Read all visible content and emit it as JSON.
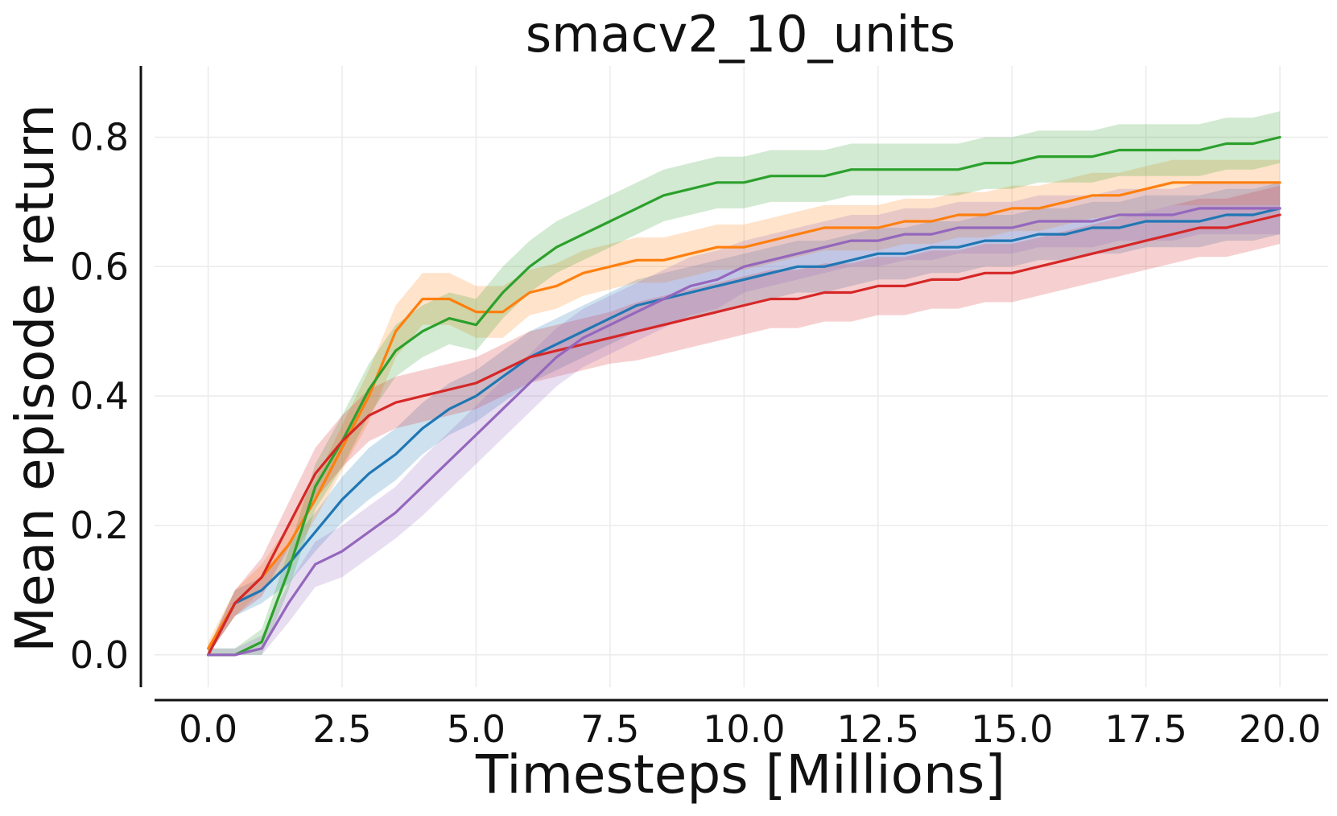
{
  "chart_data": {
    "type": "line",
    "title": "smacv2_10_units",
    "xlabel": "Timesteps [Millions]",
    "ylabel": "Mean episode return",
    "xlim": [
      -1.0,
      20.9
    ],
    "ylim": [
      -0.05,
      0.91
    ],
    "xticks": [
      0.0,
      2.5,
      5.0,
      7.5,
      10.0,
      12.5,
      15.0,
      17.5,
      20.0
    ],
    "xtick_labels": [
      "0.0",
      "2.5",
      "5.0",
      "7.5",
      "10.0",
      "12.5",
      "15.0",
      "17.5",
      "20.0"
    ],
    "yticks": [
      0.0,
      0.2,
      0.4,
      0.6,
      0.8
    ],
    "ytick_labels": [
      "0.0",
      "0.2",
      "0.4",
      "0.6",
      "0.8"
    ],
    "grid": true,
    "legend": "none",
    "x": [
      0.0,
      0.5,
      1.0,
      1.5,
      2.0,
      2.5,
      3.0,
      3.5,
      4.0,
      4.5,
      5.0,
      5.5,
      6.0,
      6.5,
      7.0,
      7.5,
      8.0,
      8.5,
      9.0,
      9.5,
      10.0,
      10.5,
      11.0,
      11.5,
      12.0,
      12.5,
      13.0,
      13.5,
      14.0,
      14.5,
      15.0,
      15.5,
      16.0,
      16.5,
      17.0,
      17.5,
      18.0,
      18.5,
      19.0,
      19.5,
      20.0
    ],
    "series": [
      {
        "name": "blue",
        "color": "#1f77b4",
        "values": [
          0.0,
          0.08,
          0.1,
          0.14,
          0.19,
          0.24,
          0.28,
          0.31,
          0.35,
          0.38,
          0.4,
          0.43,
          0.46,
          0.48,
          0.5,
          0.52,
          0.54,
          0.55,
          0.56,
          0.57,
          0.58,
          0.59,
          0.6,
          0.6,
          0.61,
          0.62,
          0.62,
          0.63,
          0.63,
          0.64,
          0.64,
          0.65,
          0.65,
          0.66,
          0.66,
          0.67,
          0.67,
          0.67,
          0.68,
          0.68,
          0.69
        ],
        "band": [
          0.01,
          0.02,
          0.02,
          0.03,
          0.03,
          0.035,
          0.04,
          0.04,
          0.04,
          0.04,
          0.04,
          0.04,
          0.04,
          0.04,
          0.04,
          0.04,
          0.04,
          0.04,
          0.04,
          0.04,
          0.04,
          0.04,
          0.04,
          0.04,
          0.04,
          0.04,
          0.04,
          0.04,
          0.04,
          0.04,
          0.04,
          0.04,
          0.04,
          0.04,
          0.04,
          0.04,
          0.04,
          0.04,
          0.04,
          0.04,
          0.04
        ]
      },
      {
        "name": "orange",
        "color": "#ff7f0e",
        "values": [
          0.01,
          0.08,
          0.12,
          0.17,
          0.24,
          0.32,
          0.4,
          0.5,
          0.55,
          0.55,
          0.53,
          0.53,
          0.56,
          0.57,
          0.59,
          0.6,
          0.61,
          0.61,
          0.62,
          0.63,
          0.63,
          0.64,
          0.65,
          0.66,
          0.66,
          0.66,
          0.67,
          0.67,
          0.68,
          0.68,
          0.69,
          0.69,
          0.7,
          0.71,
          0.71,
          0.72,
          0.73,
          0.73,
          0.73,
          0.73,
          0.73
        ],
        "band": [
          0.01,
          0.02,
          0.02,
          0.03,
          0.03,
          0.035,
          0.04,
          0.04,
          0.04,
          0.04,
          0.04,
          0.04,
          0.035,
          0.035,
          0.035,
          0.035,
          0.035,
          0.035,
          0.035,
          0.035,
          0.035,
          0.035,
          0.035,
          0.035,
          0.035,
          0.035,
          0.035,
          0.035,
          0.035,
          0.035,
          0.035,
          0.035,
          0.035,
          0.035,
          0.035,
          0.035,
          0.035,
          0.035,
          0.035,
          0.035,
          0.035
        ]
      },
      {
        "name": "green",
        "color": "#2ca02c",
        "values": [
          0.0,
          0.0,
          0.02,
          0.13,
          0.26,
          0.33,
          0.41,
          0.47,
          0.5,
          0.52,
          0.51,
          0.56,
          0.6,
          0.63,
          0.65,
          0.67,
          0.69,
          0.71,
          0.72,
          0.73,
          0.73,
          0.74,
          0.74,
          0.74,
          0.75,
          0.75,
          0.75,
          0.75,
          0.75,
          0.76,
          0.76,
          0.77,
          0.77,
          0.77,
          0.78,
          0.78,
          0.78,
          0.78,
          0.79,
          0.79,
          0.8
        ],
        "band": [
          0.01,
          0.01,
          0.02,
          0.03,
          0.035,
          0.04,
          0.04,
          0.04,
          0.04,
          0.04,
          0.04,
          0.04,
          0.04,
          0.04,
          0.04,
          0.04,
          0.04,
          0.04,
          0.04,
          0.04,
          0.04,
          0.04,
          0.04,
          0.04,
          0.04,
          0.04,
          0.04,
          0.04,
          0.04,
          0.04,
          0.04,
          0.04,
          0.04,
          0.04,
          0.04,
          0.04,
          0.04,
          0.04,
          0.04,
          0.04,
          0.04
        ]
      },
      {
        "name": "red",
        "color": "#d62728",
        "values": [
          0.0,
          0.08,
          0.12,
          0.2,
          0.28,
          0.33,
          0.37,
          0.39,
          0.4,
          0.41,
          0.42,
          0.44,
          0.46,
          0.47,
          0.48,
          0.49,
          0.5,
          0.51,
          0.52,
          0.53,
          0.54,
          0.55,
          0.55,
          0.56,
          0.56,
          0.57,
          0.57,
          0.58,
          0.58,
          0.59,
          0.59,
          0.6,
          0.61,
          0.62,
          0.63,
          0.64,
          0.65,
          0.66,
          0.66,
          0.67,
          0.68
        ],
        "band": [
          0.01,
          0.02,
          0.03,
          0.035,
          0.04,
          0.04,
          0.04,
          0.04,
          0.04,
          0.04,
          0.04,
          0.04,
          0.04,
          0.04,
          0.04,
          0.04,
          0.045,
          0.045,
          0.045,
          0.045,
          0.045,
          0.045,
          0.045,
          0.045,
          0.045,
          0.045,
          0.045,
          0.045,
          0.045,
          0.045,
          0.045,
          0.045,
          0.045,
          0.045,
          0.045,
          0.045,
          0.045,
          0.045,
          0.045,
          0.045,
          0.045
        ]
      },
      {
        "name": "purple",
        "color": "#9467bd",
        "values": [
          0.0,
          0.0,
          0.01,
          0.08,
          0.14,
          0.16,
          0.19,
          0.22,
          0.26,
          0.3,
          0.34,
          0.38,
          0.42,
          0.46,
          0.49,
          0.51,
          0.53,
          0.55,
          0.57,
          0.58,
          0.6,
          0.61,
          0.62,
          0.63,
          0.64,
          0.64,
          0.65,
          0.65,
          0.66,
          0.66,
          0.66,
          0.67,
          0.67,
          0.67,
          0.68,
          0.68,
          0.68,
          0.69,
          0.69,
          0.69,
          0.69
        ],
        "band": [
          0.01,
          0.01,
          0.02,
          0.03,
          0.035,
          0.04,
          0.04,
          0.04,
          0.045,
          0.045,
          0.045,
          0.045,
          0.045,
          0.045,
          0.045,
          0.045,
          0.045,
          0.045,
          0.045,
          0.045,
          0.04,
          0.04,
          0.04,
          0.04,
          0.04,
          0.04,
          0.04,
          0.04,
          0.04,
          0.04,
          0.04,
          0.04,
          0.04,
          0.04,
          0.04,
          0.04,
          0.04,
          0.04,
          0.04,
          0.04,
          0.04
        ]
      }
    ]
  }
}
